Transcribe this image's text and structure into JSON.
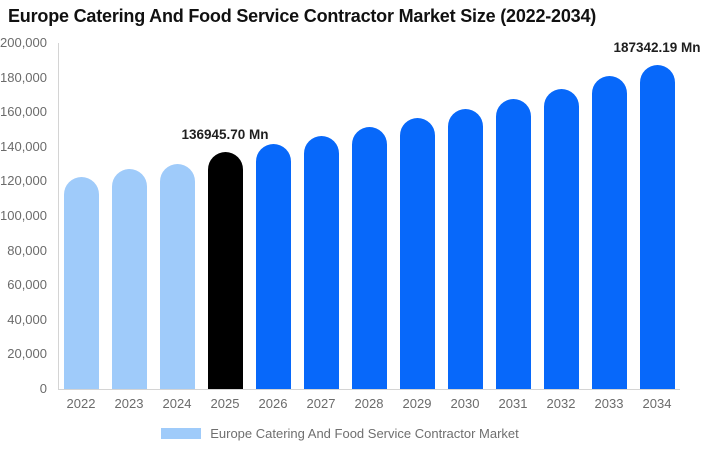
{
  "title": "Europe Catering And Food Service Contractor Market Size (2022-2034)",
  "legend": {
    "label": "Europe Catering And Food Service Contractor Market",
    "swatch_color": "#9FCBFA"
  },
  "colors": {
    "light_blue_bar": "#9FCBFA",
    "blue_bar": "#0768FA",
    "black_bar": "#000000",
    "axis_line": "#d4d4d4",
    "tick_text": "#6b6b6b",
    "title_text": "#111111",
    "data_label_text": "#1f1f1f",
    "background": "#ffffff"
  },
  "chart_data": {
    "type": "bar",
    "title": "Europe Catering And Food Service Contractor Market Size (2022-2034)",
    "categories": [
      "2022",
      "2023",
      "2024",
      "2025",
      "2026",
      "2027",
      "2028",
      "2029",
      "2030",
      "2031",
      "2032",
      "2033",
      "2034"
    ],
    "values": [
      122500,
      127000,
      130200,
      136945.7,
      141800,
      146300,
      151200,
      156700,
      162000,
      167800,
      173600,
      180700,
      187342.19
    ],
    "bar_colors": [
      "#9FCBFA",
      "#9FCBFA",
      "#9FCBFA",
      "#000000",
      "#0768FA",
      "#0768FA",
      "#0768FA",
      "#0768FA",
      "#0768FA",
      "#0768FA",
      "#0768FA",
      "#0768FA",
      "#0768FA"
    ],
    "annotations": [
      {
        "index": 3,
        "text": "136945.70 Mn"
      },
      {
        "index": 12,
        "text": "187342.19 Mn"
      }
    ],
    "xlabel": "",
    "ylabel": "",
    "ylim": [
      0,
      200000
    ],
    "y_ticks": [
      "0",
      "20,000",
      "40,000",
      "60,000",
      "80,000",
      "100,000",
      "120,000",
      "140,000",
      "160,000",
      "180,000",
      "200,000"
    ],
    "grid": false,
    "legend": [
      "Europe Catering And Food Service Contractor Market"
    ],
    "legend_position": "bottom"
  }
}
